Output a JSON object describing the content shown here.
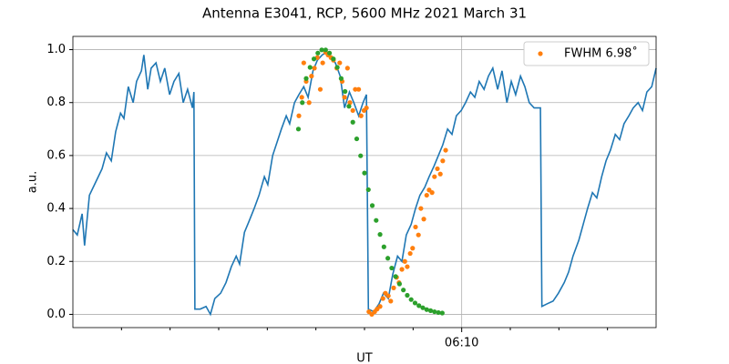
{
  "chart_data": {
    "type": "line",
    "title": "Antenna E3041, RCP, 5600 MHz 2021 March 31",
    "xlabel": "UT",
    "ylabel": "a.u.",
    "xlim": [
      362,
      374
    ],
    "xticks": [
      {
        "value": 370,
        "label": "06:10"
      }
    ],
    "xminorticks": [
      363,
      364,
      365,
      366,
      367,
      368,
      369,
      371,
      372,
      373
    ],
    "ylim": [
      -0.05,
      1.05
    ],
    "yticks": [
      {
        "value": 0,
        "label": "0.0"
      },
      0.2,
      0.4,
      0.6,
      0.8,
      {
        "value": 1,
        "label": "1.0"
      }
    ],
    "grid": true,
    "legend": "upper right",
    "series": [
      {
        "type": "line",
        "color": "#1f77b4",
        "x": [
          362.0,
          362.09,
          362.19,
          362.24,
          362.34,
          362.47,
          362.6,
          362.69,
          362.79,
          362.88,
          362.98,
          363.05,
          363.14,
          363.24,
          363.31,
          363.41,
          363.46,
          363.54,
          363.61,
          363.71,
          363.8,
          363.89,
          363.99,
          364.08,
          364.18,
          364.27,
          364.36,
          364.46,
          364.49,
          364.51,
          364.62,
          364.74,
          364.83,
          364.92,
          365.04,
          365.15,
          365.26,
          365.36,
          365.43,
          365.53,
          365.62,
          365.73,
          365.83,
          365.94,
          366.01,
          366.11,
          366.2,
          366.29,
          366.39,
          366.46,
          366.56,
          366.65,
          366.75,
          366.84,
          366.94,
          367.03,
          367.13,
          367.22,
          367.31,
          367.4,
          367.5,
          367.59,
          367.69,
          367.78,
          367.88,
          367.97,
          368.04,
          368.08,
          368.19,
          368.3,
          368.39,
          368.49,
          368.58,
          368.68,
          368.77,
          368.86,
          368.96,
          369.05,
          369.14,
          369.24,
          369.33,
          369.43,
          369.52,
          369.61,
          369.71,
          369.8,
          369.89,
          369.99,
          370.08,
          370.18,
          370.27,
          370.36,
          370.46,
          370.55,
          370.64,
          370.74,
          370.83,
          370.93,
          371.02,
          371.11,
          371.21,
          371.3,
          371.39,
          371.49,
          371.62,
          371.65,
          371.76,
          371.88,
          371.99,
          372.11,
          372.2,
          372.29,
          372.41,
          372.5,
          372.59,
          372.69,
          372.78,
          372.88,
          372.97,
          373.06,
          373.16,
          373.25,
          373.34,
          373.44,
          373.53,
          373.63,
          373.72,
          373.81,
          373.91,
          374.0
        ],
        "values": [
          0.32,
          0.3,
          0.38,
          0.26,
          0.45,
          0.5,
          0.55,
          0.61,
          0.58,
          0.69,
          0.76,
          0.74,
          0.86,
          0.8,
          0.88,
          0.92,
          0.98,
          0.85,
          0.93,
          0.95,
          0.88,
          0.93,
          0.83,
          0.88,
          0.91,
          0.8,
          0.85,
          0.78,
          0.84,
          0.02,
          0.02,
          0.03,
          0.0,
          0.06,
          0.08,
          0.12,
          0.18,
          0.22,
          0.19,
          0.31,
          0.35,
          0.4,
          0.45,
          0.52,
          0.49,
          0.6,
          0.65,
          0.7,
          0.75,
          0.72,
          0.8,
          0.83,
          0.86,
          0.82,
          0.92,
          0.96,
          0.98,
          0.99,
          0.97,
          0.95,
          0.9,
          0.78,
          0.84,
          0.8,
          0.75,
          0.8,
          0.83,
          0.02,
          0.01,
          0.04,
          0.08,
          0.06,
          0.15,
          0.22,
          0.2,
          0.3,
          0.34,
          0.4,
          0.45,
          0.48,
          0.52,
          0.56,
          0.6,
          0.64,
          0.7,
          0.68,
          0.75,
          0.77,
          0.8,
          0.84,
          0.82,
          0.88,
          0.85,
          0.9,
          0.93,
          0.85,
          0.92,
          0.8,
          0.88,
          0.83,
          0.9,
          0.86,
          0.8,
          0.78,
          0.78,
          0.03,
          0.04,
          0.05,
          0.08,
          0.12,
          0.16,
          0.22,
          0.28,
          0.34,
          0.4,
          0.46,
          0.44,
          0.52,
          0.58,
          0.62,
          0.68,
          0.66,
          0.72,
          0.75,
          0.78,
          0.8,
          0.77,
          0.84,
          0.86,
          0.93
        ]
      },
      {
        "type": "scatter",
        "name": "FWHM 6.98˚",
        "color": "#ff7f0e",
        "x": [
          366.65,
          366.71,
          366.75,
          366.8,
          366.86,
          366.91,
          366.97,
          367.03,
          367.09,
          367.14,
          367.2,
          367.25,
          367.31,
          367.36,
          367.43,
          367.49,
          367.54,
          367.59,
          367.65,
          367.7,
          367.76,
          367.81,
          367.88,
          367.93,
          367.99,
          368.04,
          368.09,
          368.15,
          368.21,
          368.26,
          368.32,
          368.38,
          368.43,
          368.49,
          368.54,
          368.6,
          368.66,
          368.71,
          368.77,
          368.83,
          368.88,
          368.94,
          368.99,
          369.05,
          369.11,
          369.16,
          369.22,
          369.28,
          369.33,
          369.39,
          369.44,
          369.5,
          369.56,
          369.61,
          369.67
        ],
        "values": [
          0.75,
          0.82,
          0.95,
          0.88,
          0.8,
          0.9,
          0.93,
          0.97,
          0.85,
          0.95,
          0.99,
          0.98,
          0.97,
          0.96,
          0.93,
          0.95,
          0.88,
          0.82,
          0.93,
          0.8,
          0.77,
          0.85,
          0.85,
          0.75,
          0.77,
          0.78,
          0.01,
          0.0,
          0.01,
          0.02,
          0.03,
          0.06,
          0.08,
          0.07,
          0.05,
          0.1,
          0.14,
          0.12,
          0.17,
          0.2,
          0.18,
          0.23,
          0.25,
          0.33,
          0.3,
          0.4,
          0.36,
          0.45,
          0.47,
          0.46,
          0.52,
          0.55,
          0.53,
          0.58,
          0.62
        ]
      },
      {
        "type": "scatter",
        "color": "#2ca02c",
        "x": [
          366.64,
          366.72,
          366.8,
          366.88,
          366.96,
          367.04,
          367.12,
          367.2,
          367.28,
          367.36,
          367.44,
          367.52,
          367.6,
          367.68,
          367.76,
          367.84,
          367.92,
          368.0,
          368.08,
          368.16,
          368.24,
          368.32,
          368.4,
          368.48,
          368.56,
          368.64,
          368.72,
          368.8,
          368.88,
          368.96,
          369.04,
          369.12,
          369.2,
          369.28,
          369.36,
          369.44,
          369.52,
          369.6
        ],
        "values": [
          0.7,
          0.8,
          0.891,
          0.933,
          0.965,
          0.987,
          0.999,
          0.999,
          0.987,
          0.965,
          0.933,
          0.891,
          0.842,
          0.786,
          0.726,
          0.663,
          0.599,
          0.534,
          0.471,
          0.411,
          0.355,
          0.302,
          0.255,
          0.212,
          0.175,
          0.143,
          0.115,
          0.092,
          0.072,
          0.056,
          0.043,
          0.033,
          0.025,
          0.018,
          0.014,
          0.01,
          0.007,
          0.005
        ]
      }
    ]
  }
}
